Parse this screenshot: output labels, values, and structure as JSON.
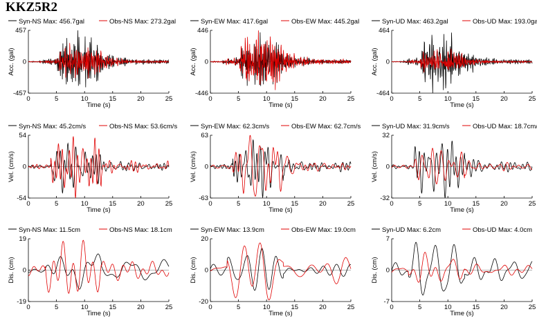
{
  "title": "KKZ5R2",
  "colors": {
    "syn": "#000000",
    "obs": "#e00000"
  },
  "x_label": "Time (s)",
  "x_ticks": [
    "0",
    "5",
    "10",
    "15",
    "20",
    "25"
  ],
  "chart_data": [
    {
      "type": "line",
      "title": "",
      "xlabel": "Time (s)",
      "ylabel": "Acc. (gal)",
      "xlim": [
        0,
        25
      ],
      "ylim": [
        -457,
        457
      ],
      "y_ticks": [
        "457",
        "0",
        "-457"
      ],
      "zero_tick": "0",
      "series": [
        {
          "name": "Syn-NS",
          "max_label": "Max: 456.7gal",
          "color": "#000000",
          "style": "acc",
          "max": 456.7,
          "seed": 11
        },
        {
          "name": "Obs-NS",
          "max_label": "Max: 273.2gal",
          "color": "#e00000",
          "style": "acc",
          "max": 273.2,
          "seed": 12
        }
      ]
    },
    {
      "type": "line",
      "title": "",
      "xlabel": "Time (s)",
      "ylabel": "Acc. (gal)",
      "xlim": [
        0,
        25
      ],
      "ylim": [
        -446,
        446
      ],
      "y_ticks": [
        "446",
        "0",
        "-446"
      ],
      "zero_tick": "0",
      "series": [
        {
          "name": "Syn-EW",
          "max_label": "Max: 417.6gal",
          "color": "#000000",
          "style": "acc",
          "max": 417.6,
          "seed": 21
        },
        {
          "name": "Obs-EW",
          "max_label": "Max: 445.2gal",
          "color": "#e00000",
          "style": "acc",
          "max": 445.2,
          "seed": 22
        }
      ]
    },
    {
      "type": "line",
      "title": "",
      "xlabel": "Time (s)",
      "ylabel": "Acc. (gal)",
      "xlim": [
        0,
        25
      ],
      "ylim": [
        -464,
        464
      ],
      "y_ticks": [
        "464",
        "0",
        "-464"
      ],
      "zero_tick": "0",
      "series": [
        {
          "name": "Syn-UD",
          "max_label": "Max: 463.2gal",
          "color": "#000000",
          "style": "acc",
          "max": 463.2,
          "seed": 31
        },
        {
          "name": "Obs-UD",
          "max_label": "Max: 193.0gal",
          "color": "#e00000",
          "style": "acc",
          "max": 193.0,
          "seed": 32
        }
      ]
    },
    {
      "type": "line",
      "title": "",
      "xlabel": "Time (s)",
      "ylabel": "Vel. (cm/s)",
      "xlim": [
        0,
        25
      ],
      "ylim": [
        -54,
        54
      ],
      "y_ticks": [
        "54",
        "0",
        "-54"
      ],
      "zero_tick": "0",
      "series": [
        {
          "name": "Syn-NS",
          "max_label": "Max: 45.2cm/s",
          "color": "#000000",
          "style": "vel",
          "max": 45.2,
          "seed": 41
        },
        {
          "name": "Obs-NS",
          "max_label": "Max: 53.6cm/s",
          "color": "#e00000",
          "style": "vel",
          "max": 53.6,
          "seed": 42
        }
      ]
    },
    {
      "type": "line",
      "title": "",
      "xlabel": "Time (s)",
      "ylabel": "Vel. (cm/s)",
      "xlim": [
        0,
        25
      ],
      "ylim": [
        -63,
        63
      ],
      "y_ticks": [
        "63",
        "0",
        "-63"
      ],
      "zero_tick": "0",
      "series": [
        {
          "name": "Syn-EW",
          "max_label": "Max: 62.3cm/s",
          "color": "#000000",
          "style": "vel",
          "max": 62.3,
          "seed": 51
        },
        {
          "name": "Obs-EW",
          "max_label": "Max: 62.7cm/s",
          "color": "#e00000",
          "style": "vel",
          "max": 62.7,
          "seed": 52
        }
      ]
    },
    {
      "type": "line",
      "title": "",
      "xlabel": "Time (s)",
      "ylabel": "Vel. (cm/s)",
      "xlim": [
        0,
        25
      ],
      "ylim": [
        -32,
        32
      ],
      "y_ticks": [
        "32",
        "0",
        "-32"
      ],
      "zero_tick": "0",
      "series": [
        {
          "name": "Syn-UD",
          "max_label": "Max: 31.9cm/s",
          "color": "#000000",
          "style": "vel",
          "max": 31.9,
          "seed": 61
        },
        {
          "name": "Obs-UD",
          "max_label": "Max: 18.7cm/s",
          "color": "#e00000",
          "style": "vel",
          "max": 18.7,
          "seed": 62
        }
      ]
    },
    {
      "type": "line",
      "title": "",
      "xlabel": "Time (s)",
      "ylabel": "Dis. (cm)",
      "xlim": [
        0,
        25
      ],
      "ylim": [
        -19,
        19
      ],
      "y_ticks": [
        "19",
        "0",
        "-19"
      ],
      "zero_tick": "0",
      "series": [
        {
          "name": "Syn-NS",
          "max_label": "Max: 11.5cm",
          "color": "#000000",
          "style": "dis",
          "max": 11.5,
          "seed": 71
        },
        {
          "name": "Obs-NS",
          "max_label": "Max: 18.1cm",
          "color": "#e00000",
          "style": "dis",
          "max": 18.1,
          "seed": 72
        }
      ]
    },
    {
      "type": "line",
      "title": "",
      "xlabel": "Time (s)",
      "ylabel": "Dis. (cm)",
      "xlim": [
        0,
        25
      ],
      "ylim": [
        -20,
        20
      ],
      "y_ticks": [
        "20",
        "0",
        "-20"
      ],
      "zero_tick": "0",
      "series": [
        {
          "name": "Syn-EW",
          "max_label": "Max: 13.9cm",
          "color": "#000000",
          "style": "dis",
          "max": 13.9,
          "seed": 81
        },
        {
          "name": "Obs-EW",
          "max_label": "Max: 19.0cm",
          "color": "#e00000",
          "style": "dis",
          "max": 19.0,
          "seed": 82
        }
      ]
    },
    {
      "type": "line",
      "title": "",
      "xlabel": "Time (s)",
      "ylabel": "Dis. (cm)",
      "xlim": [
        0,
        25
      ],
      "ylim": [
        -7,
        7
      ],
      "y_ticks": [
        "7",
        "0",
        "-7"
      ],
      "zero_tick": "0",
      "series": [
        {
          "name": "Syn-UD",
          "max_label": "Max: 6.2cm",
          "color": "#000000",
          "style": "dis",
          "max": 6.2,
          "seed": 91
        },
        {
          "name": "Obs-UD",
          "max_label": "Max: 4.0cm",
          "color": "#e00000",
          "style": "dis",
          "max": 4.0,
          "seed": 92
        }
      ]
    }
  ]
}
